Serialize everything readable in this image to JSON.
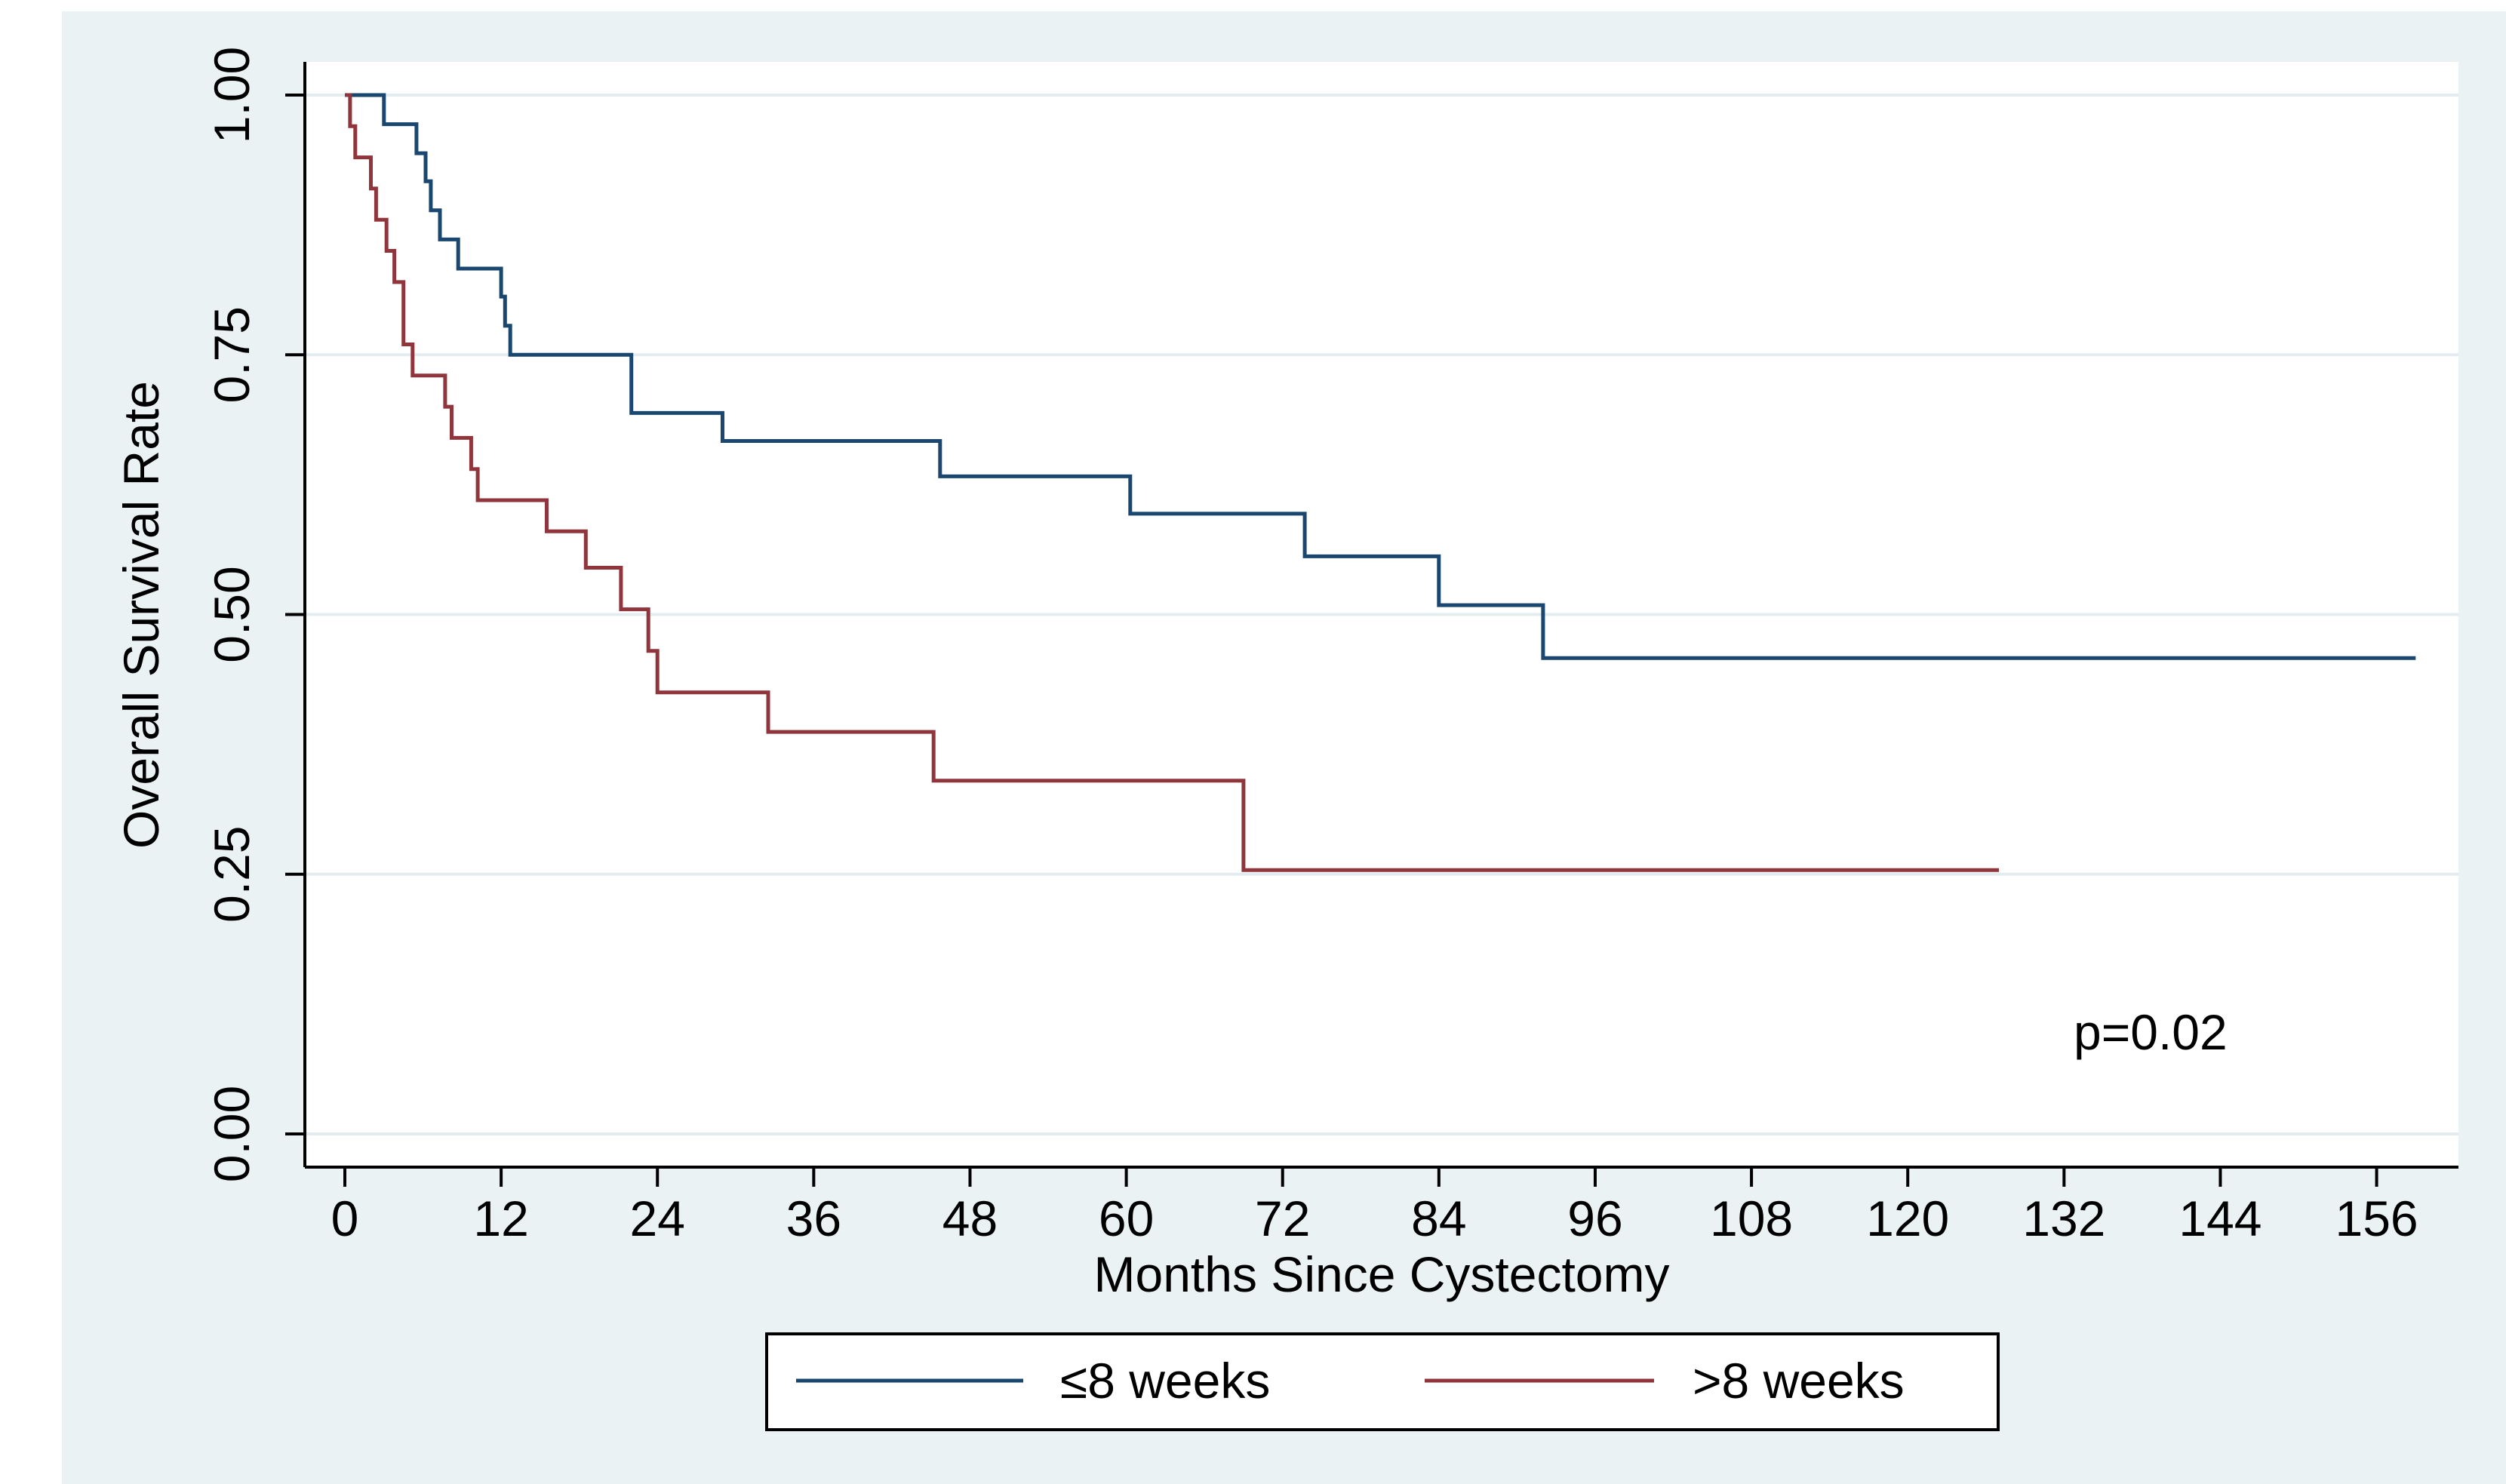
{
  "chart_data": {
    "type": "line",
    "title": "",
    "xlabel": "Months Since Cystectomy",
    "ylabel": "Overall Survival Rate",
    "xlim": [
      0,
      160
    ],
    "ylim": [
      0,
      1
    ],
    "x_ticks": [
      0,
      12,
      24,
      36,
      48,
      60,
      72,
      84,
      96,
      108,
      120,
      132,
      144,
      156
    ],
    "x_tick_labels": [
      "0",
      "12",
      "24",
      "36",
      "48",
      "60",
      "72",
      "84",
      "96",
      "108",
      "120",
      "132",
      "144",
      "156"
    ],
    "y_ticks": [
      0,
      0.25,
      0.5,
      0.75,
      1
    ],
    "y_tick_labels": [
      "0.00",
      "0.25",
      "0.50",
      "0.75",
      "1.00"
    ],
    "grid": true,
    "legend_position": "bottom",
    "annotation": "p=0.02",
    "colors": {
      "outer_background": "#eaf2f3",
      "plot_background": "#ffffff",
      "grid": "#e3ecef",
      "axis": "#000000"
    },
    "series": [
      {
        "name": "≤8 weeks",
        "color": "#1a476f",
        "step": true,
        "x": [
          0,
          3,
          5.5,
          6.2,
          6.6,
          7.3,
          8.7,
          12,
          12.3,
          12.7,
          13.2,
          22,
          29,
          45.7,
          60.3,
          73.7,
          84,
          92,
          159
        ],
        "y": [
          1.0,
          0.972,
          0.944,
          0.917,
          0.889,
          0.861,
          0.833,
          0.806,
          0.778,
          0.75,
          0.75,
          0.694,
          0.667,
          0.633,
          0.597,
          0.556,
          0.509,
          0.458,
          0.458
        ]
      },
      {
        "name": ">8 weeks",
        "color": "#90353b",
        "step": true,
        "x": [
          0,
          0.4,
          0.8,
          2,
          2.4,
          3.2,
          3.8,
          4.5,
          5.2,
          5.8,
          7.7,
          8.2,
          9.7,
          10.2,
          15.5,
          18.5,
          21.2,
          23.3,
          24,
          32.5,
          45.2,
          69,
          127
        ],
        "y": [
          1.0,
          0.97,
          0.94,
          0.91,
          0.88,
          0.85,
          0.82,
          0.76,
          0.73,
          0.73,
          0.7,
          0.67,
          0.64,
          0.61,
          0.58,
          0.545,
          0.505,
          0.465,
          0.425,
          0.387,
          0.34,
          0.254,
          0.254
        ]
      }
    ]
  }
}
